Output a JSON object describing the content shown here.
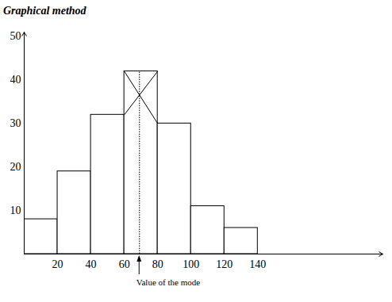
{
  "chart_data": {
    "type": "histogram",
    "title": "Graphical method",
    "bins": [
      0,
      20,
      40,
      60,
      80,
      100,
      120,
      140
    ],
    "values": [
      8,
      19,
      32,
      42,
      30,
      11,
      6
    ],
    "color": "#ffffff",
    "xlim": [
      0,
      215
    ],
    "xticks": [
      20,
      40,
      60,
      80,
      100,
      120,
      140
    ],
    "ylim": [
      0,
      51
    ],
    "yticks": [
      10,
      20,
      30,
      40,
      50
    ],
    "annotation": "Value of the mode"
  }
}
